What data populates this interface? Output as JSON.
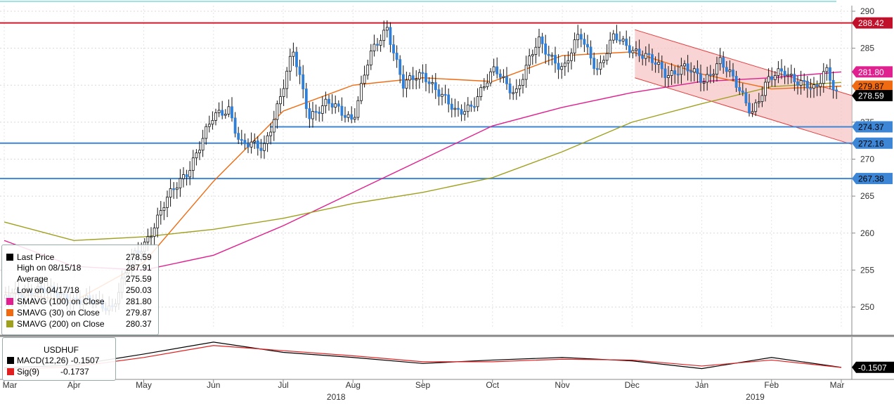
{
  "chart_data": [
    {
      "type": "candlestick",
      "ylim": [
        245,
        291
      ],
      "x_labels": [
        "Mar",
        "Apr",
        "May",
        "Jun",
        "Jul",
        "Aug",
        "Sep",
        "Oct",
        "Nov",
        "Dec",
        "Jan",
        "Feb",
        "Mar"
      ],
      "year_labels": [
        "2018",
        "2019"
      ],
      "y_ticks": [
        250,
        255,
        260,
        265,
        270,
        275,
        280,
        285,
        290
      ],
      "price_path": [
        [
          "03/01/18",
          251.2
        ],
        [
          "03/15/18",
          252.5
        ],
        [
          "04/01/18",
          251.0
        ],
        [
          "04/17/18",
          250.03
        ],
        [
          "04/25/18",
          256.0
        ],
        [
          "05/01/18",
          258.5
        ],
        [
          "05/10/18",
          264.0
        ],
        [
          "05/20/18",
          268.5
        ],
        [
          "05/31/18",
          275.5
        ],
        [
          "06/07/18",
          277.0
        ],
        [
          "06/12/18",
          272.0
        ],
        [
          "06/22/18",
          271.5
        ],
        [
          "06/30/18",
          279.0
        ],
        [
          "07/05/18",
          284.5
        ],
        [
          "07/12/18",
          276.0
        ],
        [
          "07/20/18",
          277.5
        ],
        [
          "07/31/18",
          275.5
        ],
        [
          "08/07/18",
          283.5
        ],
        [
          "08/15/18",
          287.91
        ],
        [
          "08/22/18",
          280.0
        ],
        [
          "08/31/18",
          281.5
        ],
        [
          "09/07/18",
          279.0
        ],
        [
          "09/14/18",
          276.0
        ],
        [
          "09/21/18",
          277.5
        ],
        [
          "10/01/18",
          282.0
        ],
        [
          "10/10/18",
          279.0
        ],
        [
          "10/20/18",
          286.0
        ],
        [
          "10/31/18",
          282.0
        ],
        [
          "11/07/18",
          287.0
        ],
        [
          "11/15/18",
          282.0
        ],
        [
          "11/22/18",
          286.5
        ],
        [
          "11/30/18",
          285.0
        ],
        [
          "12/07/18",
          283.5
        ],
        [
          "12/15/18",
          281.5
        ],
        [
          "12/22/18",
          282.5
        ],
        [
          "12/31/18",
          280.5
        ],
        [
          "01/07/19",
          283.5
        ],
        [
          "01/14/19",
          280.0
        ],
        [
          "01/21/19",
          276.5
        ],
        [
          "01/28/19",
          280.5
        ],
        [
          "02/04/19",
          282.0
        ],
        [
          "02/11/19",
          280.5
        ],
        [
          "02/18/19",
          279.0
        ],
        [
          "02/22/19",
          282.5
        ],
        [
          "02/28/19",
          278.59
        ]
      ],
      "moving_averages": [
        {
          "name": "SMAVG (100)",
          "color": "#e0208f",
          "values": [
            259.0,
            255.5,
            255.0,
            257.0,
            261.0,
            265.5,
            270.0,
            274.5,
            277.0,
            279.0,
            280.5,
            281.0,
            281.8
          ]
        },
        {
          "name": "SMAVG (30)",
          "color": "#ef6a10",
          "values": [
            252.0,
            250.8,
            256.0,
            267.0,
            276.5,
            280.0,
            281.0,
            280.5,
            284.0,
            284.5,
            281.5,
            279.5,
            279.87
          ]
        },
        {
          "name": "SMAVG (200)",
          "color": "#a0a020",
          "values": [
            261.5,
            259.0,
            259.5,
            260.5,
            262.0,
            264.0,
            265.5,
            267.5,
            271.0,
            275.0,
            277.5,
            279.8,
            280.37
          ]
        }
      ],
      "horizontal_lines": [
        {
          "value": 288.42,
          "color": "#d11a2a"
        },
        {
          "value": 272.16,
          "color": "#3d86d6"
        },
        {
          "value": 267.38,
          "color": "#3d86d6"
        }
      ],
      "support_segment": {
        "value": 274.37,
        "from": "07/01/18",
        "to": "02/28/19",
        "color": "#3d86d6"
      },
      "channel": {
        "upper": [
          287.5,
          278.6
        ],
        "lower": [
          281.0,
          272.0
        ],
        "from": "12/01/18",
        "to": "03/01/19",
        "fill": "#f7c6c6",
        "line": "#e04040"
      },
      "axis_badges": [
        {
          "value": 288.42,
          "text": "288.42",
          "bg": "#c0102a",
          "fg": "#ffffff"
        },
        {
          "value": 281.8,
          "text": "281.80",
          "bg": "#e0208f",
          "fg": "#ffffff"
        },
        {
          "value": 279.87,
          "text": "279.87",
          "bg": "#ef6a10",
          "fg": "#000000"
        },
        {
          "value": 278.59,
          "text": "278.59",
          "bg": "#000000",
          "fg": "#ffffff"
        },
        {
          "value": 274.37,
          "text": "274.37",
          "bg": "#3d86d6",
          "fg": "#000000"
        },
        {
          "value": 272.16,
          "text": "272.16",
          "bg": "#3d86d6",
          "fg": "#000000"
        },
        {
          "value": 267.38,
          "text": "267.38",
          "bg": "#3d86d6",
          "fg": "#000000"
        }
      ],
      "legend": [
        {
          "label": "Last Price",
          "value": "278.59",
          "color": "#000000"
        },
        {
          "label": "High on 08/15/18",
          "value": "287.91",
          "color": ""
        },
        {
          "label": "Average",
          "value": "275.59",
          "color": ""
        },
        {
          "label": "Low on 04/17/18",
          "value": "250.03",
          "color": ""
        },
        {
          "label": "SMAVG (100)  on Close",
          "value": "281.80",
          "color": "#e0208f"
        },
        {
          "label": "SMAVG (30)  on Close",
          "value": "279.87",
          "color": "#ef6a10"
        },
        {
          "label": "SMAVG (200)  on Close",
          "value": "280.37",
          "color": "#a0a020"
        }
      ]
    },
    {
      "type": "line",
      "title": "USDHUF",
      "series": [
        {
          "name": "MACD(12,26)",
          "color": "#000000",
          "value_label": "-0.1507",
          "values": [
            -0.2,
            0.1,
            1.4,
            2.8,
            1.6,
            1.0,
            0.3,
            0.7,
            1.0,
            0.6,
            -0.3,
            1.0,
            -0.15
          ]
        },
        {
          "name": "Sig(9)",
          "color": "#e02020",
          "value_label": "-0.1737",
          "values": [
            -0.4,
            -0.1,
            1.0,
            2.4,
            1.8,
            1.2,
            0.5,
            0.5,
            0.8,
            0.7,
            0.0,
            0.7,
            -0.17
          ]
        }
      ],
      "axis_badge": {
        "text": "-0.1507",
        "bg": "#000000",
        "fg": "#ffffff"
      }
    }
  ]
}
